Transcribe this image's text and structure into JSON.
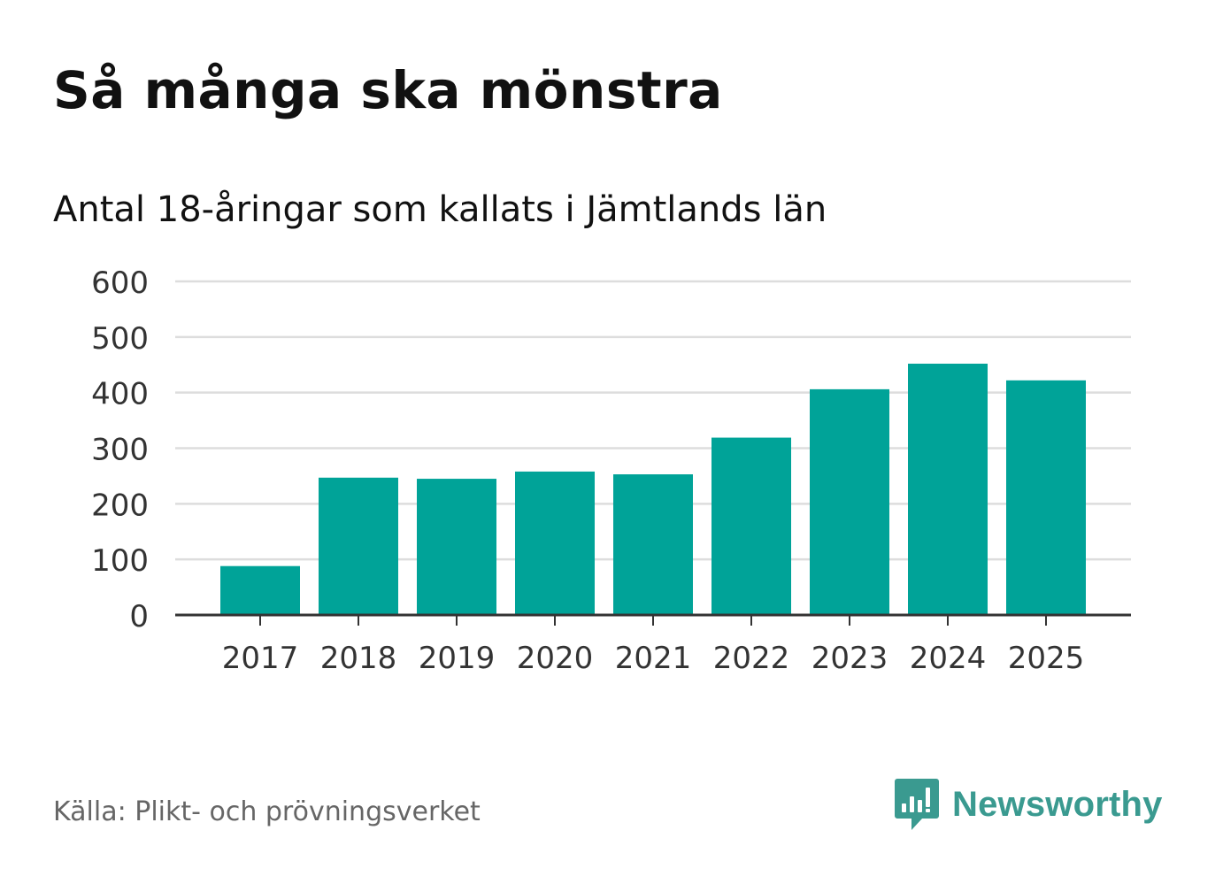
{
  "title": "Så många ska mönstra",
  "subtitle": "Antal 18-åringar som kallats i Jämtlands län",
  "source": "Källa: Plikt- och prövningsverket",
  "brand": {
    "name": "Newsworthy",
    "icon": "newsworthy-logo-icon",
    "color": "#3a9a90"
  },
  "colors": {
    "bar": "#00a398",
    "grid": "#dddddd",
    "axis": "#333333",
    "tick_text": "#333333"
  },
  "chart_data": {
    "type": "bar",
    "title": "Så många ska mönstra",
    "subtitle": "Antal 18-åringar som kallats i Jämtlands län",
    "xlabel": "",
    "ylabel": "",
    "categories": [
      "2017",
      "2018",
      "2019",
      "2020",
      "2021",
      "2022",
      "2023",
      "2024",
      "2025"
    ],
    "values": [
      88,
      247,
      245,
      258,
      253,
      319,
      406,
      452,
      422
    ],
    "ylim": [
      0,
      600
    ],
    "yticks": [
      "0",
      "100",
      "200",
      "300",
      "400",
      "500",
      "600"
    ],
    "grid": true,
    "legend": "none"
  }
}
